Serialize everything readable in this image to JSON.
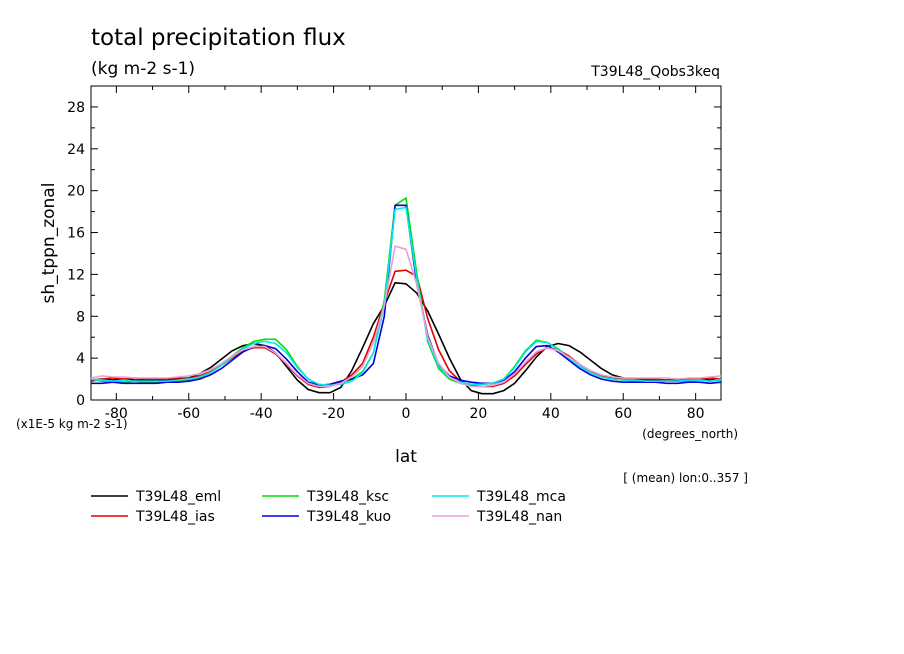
{
  "chart_data": {
    "type": "line",
    "title": "total precipitation flux",
    "units": "(kg m-2 s-1)",
    "experiment": "T39L48_Qobs3keq",
    "ylabel": "sh_tppn_zonal",
    "xlabel": "lat",
    "x_units": "(degrees_north)",
    "y_scale_note": "(x1E-5 kg m-2 s-1)",
    "mean_note": "[ (mean) lon:0..357 ]",
    "xlim": [
      -87,
      87
    ],
    "ylim": [
      0,
      30
    ],
    "xticks": [
      -80,
      -60,
      -40,
      -20,
      0,
      20,
      40,
      60,
      80
    ],
    "xtick_labels": [
      "-80",
      "-60",
      "-40",
      "-20",
      "0",
      "20",
      "40",
      "60",
      "80"
    ],
    "yticks": [
      0,
      4,
      8,
      12,
      16,
      20,
      24,
      28
    ],
    "ytick_labels": [
      "0",
      "4",
      "8",
      "12",
      "16",
      "20",
      "24",
      "28"
    ],
    "x": [
      -87,
      -84,
      -81,
      -78,
      -75,
      -72,
      -69,
      -66,
      -63,
      -60,
      -57,
      -54,
      -51,
      -48,
      -45,
      -42,
      -39,
      -36,
      -33,
      -30,
      -27,
      -24,
      -21,
      -18,
      -15,
      -12,
      -9,
      -6,
      -3,
      0,
      3,
      6,
      9,
      12,
      15,
      18,
      21,
      24,
      27,
      30,
      33,
      36,
      39,
      42,
      45,
      48,
      51,
      54,
      57,
      60,
      63,
      66,
      69,
      72,
      75,
      78,
      81,
      84,
      87
    ],
    "series": [
      {
        "name": "T39L48_eml",
        "color": "#000000",
        "values": [
          1.9,
          2.0,
          1.9,
          2.0,
          1.9,
          1.9,
          1.9,
          1.9,
          2.0,
          2.1,
          2.5,
          3.1,
          3.9,
          4.7,
          5.2,
          5.4,
          5.2,
          4.5,
          3.2,
          1.9,
          1.0,
          0.7,
          0.7,
          1.2,
          2.8,
          5.0,
          7.3,
          9.0,
          11.2,
          11.1,
          10.2,
          8.5,
          6.3,
          4.0,
          2.0,
          0.9,
          0.6,
          0.6,
          0.9,
          1.6,
          2.8,
          4.1,
          5.1,
          5.4,
          5.2,
          4.6,
          3.8,
          3.0,
          2.4,
          2.1,
          2.0,
          1.9,
          1.9,
          1.9,
          1.9,
          1.9,
          2.0,
          1.9,
          2.0
        ]
      },
      {
        "name": "T39L48_ias",
        "color": "#e00000",
        "values": [
          1.8,
          2.0,
          2.1,
          2.0,
          2.1,
          2.0,
          2.0,
          2.0,
          2.1,
          2.1,
          2.3,
          2.7,
          3.3,
          4.0,
          4.7,
          5.0,
          5.0,
          4.4,
          3.4,
          2.3,
          1.5,
          1.2,
          1.3,
          1.7,
          2.4,
          3.5,
          6.0,
          9.3,
          12.3,
          12.4,
          11.8,
          7.8,
          4.8,
          2.8,
          1.8,
          1.4,
          1.3,
          1.3,
          1.6,
          2.3,
          3.4,
          4.4,
          5.0,
          4.8,
          4.2,
          3.4,
          2.7,
          2.3,
          2.1,
          2.0,
          2.0,
          2.0,
          2.0,
          1.9,
          2.0,
          2.0,
          2.0,
          2.1,
          2.0
        ]
      },
      {
        "name": "T39L48_ksc",
        "color": "#00dd00",
        "values": [
          2.0,
          1.8,
          1.8,
          1.7,
          1.8,
          1.7,
          1.7,
          1.7,
          1.8,
          1.9,
          2.1,
          2.6,
          3.3,
          4.2,
          5.0,
          5.6,
          5.8,
          5.8,
          4.8,
          3.2,
          2.0,
          1.4,
          1.4,
          1.6,
          2.0,
          2.7,
          4.5,
          9.5,
          18.6,
          19.3,
          12.0,
          5.6,
          3.0,
          2.0,
          1.6,
          1.5,
          1.5,
          1.6,
          2.0,
          3.2,
          4.7,
          5.7,
          5.5,
          4.9,
          4.0,
          3.2,
          2.6,
          2.2,
          2.0,
          1.9,
          1.8,
          1.8,
          1.8,
          1.8,
          1.8,
          1.8,
          1.9,
          1.8,
          1.9
        ]
      },
      {
        "name": "T39L48_kuo",
        "color": "#0000e0",
        "values": [
          1.6,
          1.6,
          1.7,
          1.6,
          1.6,
          1.6,
          1.6,
          1.7,
          1.7,
          1.8,
          2.0,
          2.4,
          3.0,
          3.8,
          4.6,
          5.1,
          5.2,
          4.9,
          3.9,
          2.7,
          1.7,
          1.4,
          1.5,
          1.8,
          2.0,
          2.4,
          3.5,
          8.0,
          18.6,
          18.6,
          11.0,
          6.2,
          3.4,
          2.3,
          1.9,
          1.7,
          1.6,
          1.6,
          1.9,
          2.7,
          4.0,
          5.1,
          5.2,
          4.6,
          3.8,
          3.0,
          2.4,
          2.0,
          1.8,
          1.7,
          1.7,
          1.7,
          1.7,
          1.6,
          1.6,
          1.7,
          1.7,
          1.6,
          1.7
        ]
      },
      {
        "name": "T39L48_mca",
        "color": "#00e8e8",
        "values": [
          2.0,
          1.9,
          1.8,
          1.9,
          1.8,
          1.8,
          1.8,
          1.8,
          1.9,
          2.0,
          2.2,
          2.6,
          3.3,
          4.1,
          4.9,
          5.4,
          5.6,
          5.4,
          4.5,
          3.1,
          2.0,
          1.5,
          1.4,
          1.5,
          1.8,
          2.6,
          4.5,
          9.0,
          18.2,
          18.4,
          11.5,
          5.8,
          3.2,
          2.1,
          1.7,
          1.5,
          1.5,
          1.6,
          2.0,
          3.1,
          4.6,
          5.6,
          5.5,
          4.8,
          4.0,
          3.2,
          2.6,
          2.2,
          2.0,
          1.9,
          1.9,
          1.8,
          1.8,
          1.8,
          1.8,
          1.9,
          1.9,
          1.8,
          2.0
        ]
      },
      {
        "name": "T39L48_nan",
        "color": "#e8a0d8",
        "values": [
          2.1,
          2.3,
          2.2,
          2.2,
          2.1,
          2.1,
          2.1,
          2.1,
          2.2,
          2.3,
          2.5,
          2.9,
          3.5,
          4.2,
          4.8,
          5.1,
          5.1,
          4.5,
          3.5,
          2.4,
          1.6,
          1.3,
          1.3,
          1.6,
          2.2,
          3.2,
          5.5,
          9.0,
          14.7,
          14.4,
          11.0,
          6.0,
          3.5,
          2.2,
          1.6,
          1.3,
          1.3,
          1.4,
          1.7,
          2.5,
          3.6,
          4.6,
          5.0,
          4.7,
          4.1,
          3.4,
          2.8,
          2.4,
          2.2,
          2.1,
          2.1,
          2.1,
          2.1,
          2.1,
          2.0,
          2.1,
          2.1,
          2.2,
          2.3
        ]
      }
    ],
    "grid": false,
    "legend_placement": "bottom"
  }
}
